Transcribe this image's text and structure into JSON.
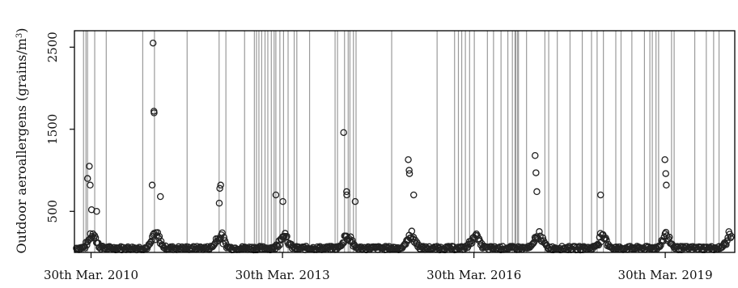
{
  "chart_data": {
    "type": "scatter",
    "title": "",
    "xlabel": "",
    "ylabel": "Outdoor aeroallergens (grains/m³)",
    "ylabel_text": "Outdoor aeroallergens (grains/m",
    "ylabel_superscript": "3",
    "ylabel_suffix": ")",
    "ylim": [
      0,
      2700
    ],
    "xlim": [
      "2009-12-25",
      "2020-05-01"
    ],
    "yticks": [
      500,
      1500,
      2500
    ],
    "xticks": [
      {
        "date": "2010-03-30",
        "label": "30th Mar. 2010"
      },
      {
        "date": "2013-03-30",
        "label": "30th Mar. 2013"
      },
      {
        "date": "2016-03-30",
        "label": "30th Mar. 2016"
      },
      {
        "date": "2019-03-30",
        "label": "30th Mar. 2019"
      }
    ],
    "grid": false,
    "legend": "none",
    "marker": "open-circle",
    "colors": {
      "points": "#222222",
      "vertical_lines": "#9a9a9a",
      "axes": "#000000"
    },
    "seasonal_peaks": [
      {
        "date": "2010-03-20",
        "y": 1050
      },
      {
        "date": "2010-03-10",
        "y": 900
      },
      {
        "date": "2010-03-25",
        "y": 820
      },
      {
        "date": "2010-04-02",
        "y": 520
      },
      {
        "date": "2010-05-01",
        "y": 500
      },
      {
        "date": "2011-03-20",
        "y": 2550
      },
      {
        "date": "2011-03-25",
        "y": 1720
      },
      {
        "date": "2011-03-26",
        "y": 1700
      },
      {
        "date": "2011-03-15",
        "y": 820
      },
      {
        "date": "2011-05-01",
        "y": 680
      },
      {
        "date": "2012-04-10",
        "y": 820
      },
      {
        "date": "2012-04-05",
        "y": 780
      },
      {
        "date": "2012-04-02",
        "y": 600
      },
      {
        "date": "2013-02-20",
        "y": 700
      },
      {
        "date": "2013-04-01",
        "y": 620
      },
      {
        "date": "2014-03-15",
        "y": 1460
      },
      {
        "date": "2014-04-01",
        "y": 740
      },
      {
        "date": "2014-04-02",
        "y": 700
      },
      {
        "date": "2014-05-20",
        "y": 620
      },
      {
        "date": "2015-03-20",
        "y": 1130
      },
      {
        "date": "2015-03-25",
        "y": 1000
      },
      {
        "date": "2015-03-27",
        "y": 960
      },
      {
        "date": "2015-04-20",
        "y": 700
      },
      {
        "date": "2017-03-15",
        "y": 1180
      },
      {
        "date": "2017-03-20",
        "y": 970
      },
      {
        "date": "2017-03-25",
        "y": 740
      },
      {
        "date": "2018-03-25",
        "y": 700
      },
      {
        "date": "2019-03-28",
        "y": 1130
      },
      {
        "date": "2019-04-02",
        "y": 960
      },
      {
        "date": "2019-04-05",
        "y": 820
      }
    ],
    "vertical_lines": [
      "2010-02-15",
      "2010-03-01",
      "2010-03-10",
      "2010-04-20",
      "2010-06-25",
      "2011-01-20",
      "2011-03-28",
      "2011-10-01",
      "2012-04-01",
      "2012-05-10",
      "2012-08-25",
      "2012-10-20",
      "2012-11-01",
      "2012-11-15",
      "2012-12-01",
      "2012-12-20",
      "2013-01-05",
      "2013-01-25",
      "2013-02-10",
      "2013-02-20",
      "2013-03-15",
      "2013-04-05",
      "2013-05-01",
      "2013-06-05",
      "2013-06-20",
      "2013-09-01",
      "2014-01-25",
      "2014-02-08",
      "2014-03-20",
      "2014-04-10",
      "2014-04-20",
      "2014-05-10",
      "2014-05-25",
      "2014-12-15",
      "2015-09-01",
      "2015-12-10",
      "2016-01-01",
      "2016-01-20",
      "2016-02-10",
      "2016-03-05",
      "2016-04-01",
      "2016-06-15",
      "2016-07-20",
      "2016-09-01",
      "2016-10-10",
      "2016-11-05",
      "2016-11-20",
      "2016-11-25",
      "2016-12-05",
      "2016-12-10",
      "2017-01-25",
      "2017-05-10",
      "2017-06-01",
      "2017-07-20",
      "2017-10-01",
      "2017-12-10",
      "2018-02-01",
      "2018-03-05",
      "2018-04-10",
      "2018-06-20",
      "2018-07-20",
      "2018-09-20",
      "2018-12-01",
      "2019-01-01",
      "2019-01-15",
      "2019-02-05",
      "2019-02-20",
      "2019-05-05",
      "2019-05-20",
      "2019-09-15",
      "2019-11-20",
      "2020-01-01",
      "2020-02-01"
    ]
  }
}
